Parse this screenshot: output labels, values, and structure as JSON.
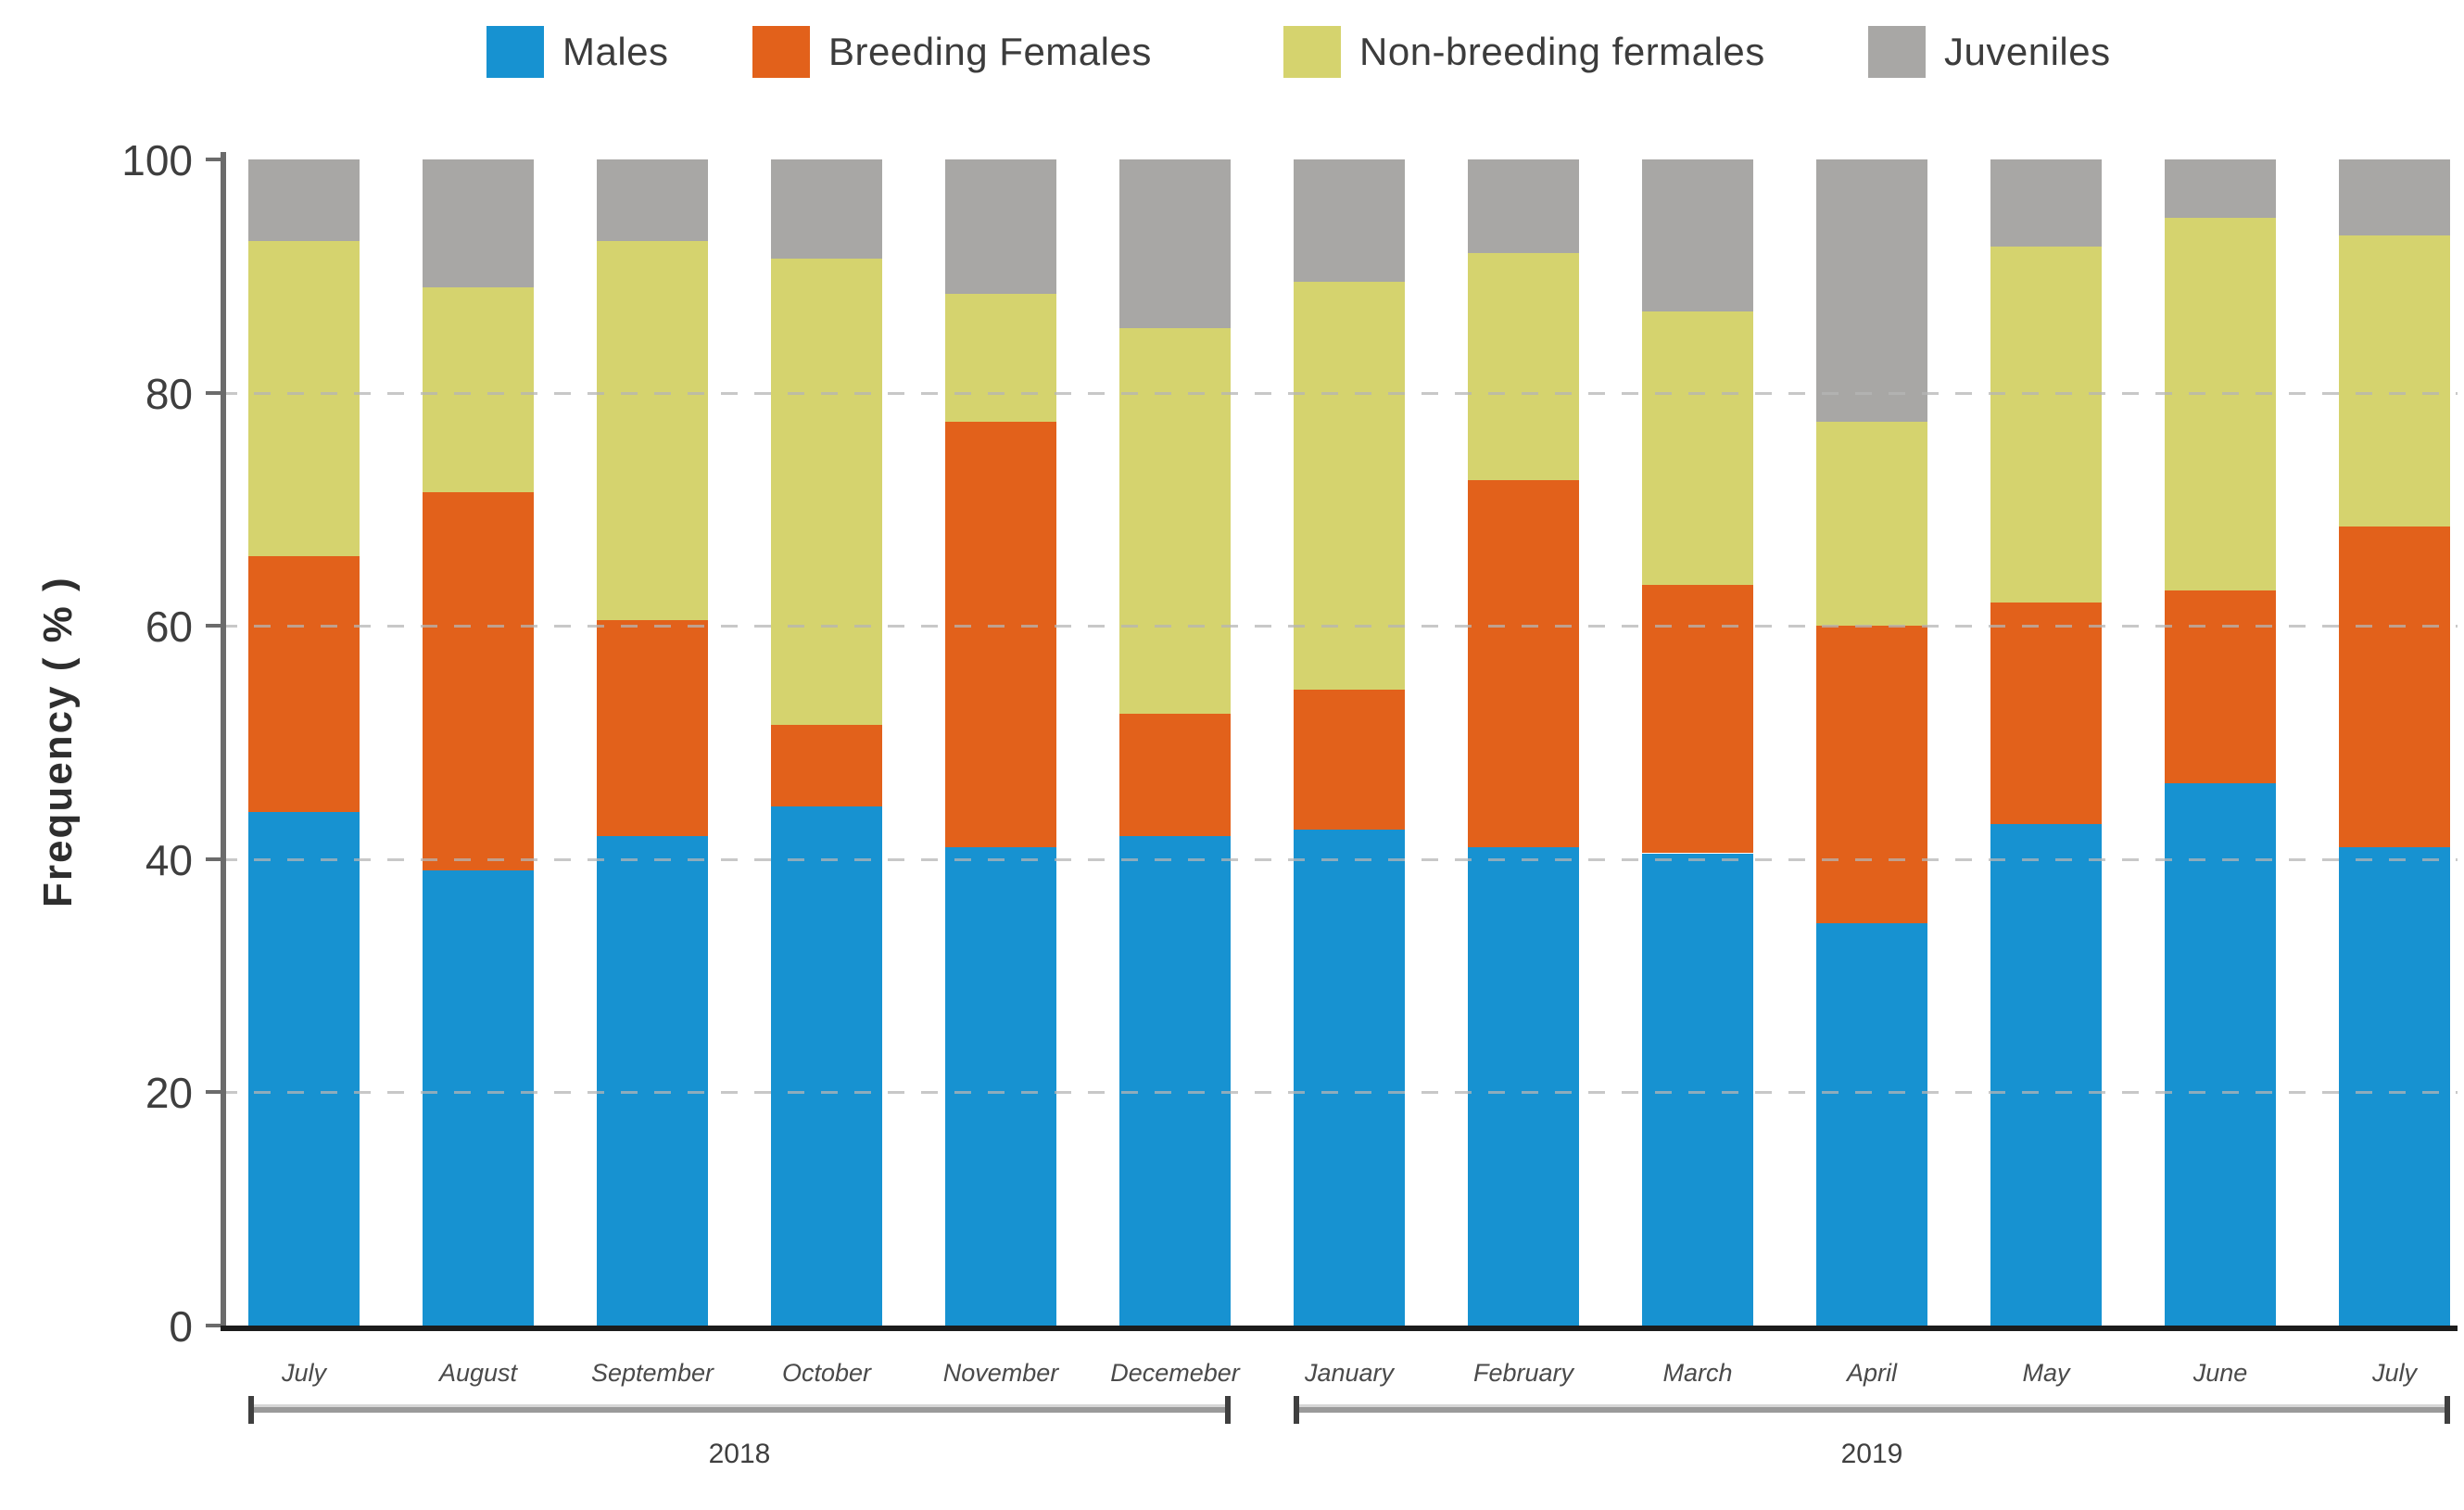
{
  "chart_data": {
    "type": "bar",
    "stacked": true,
    "title": "",
    "xlabel": "",
    "ylabel": "Frequency ( % )",
    "ylim": [
      0,
      100
    ],
    "yticks": [
      0,
      20,
      40,
      60,
      80,
      100
    ],
    "gridlines": [
      20,
      40,
      60,
      80
    ],
    "grid": "dashed horizontal",
    "legend_position": "top",
    "categories": [
      "July",
      "August",
      "September",
      "October",
      "November",
      "Decemeber",
      "January",
      "February",
      "March",
      "April",
      "May",
      "June",
      "July"
    ],
    "year_groups": [
      {
        "label": "2018",
        "from_index": 0,
        "to_index": 5
      },
      {
        "label": "2019",
        "from_index": 6,
        "to_index": 12
      }
    ],
    "series": [
      {
        "name": "Males",
        "color": "#1792d1",
        "values": [
          44,
          39,
          42,
          44.5,
          41,
          42,
          42.5,
          41,
          40.5,
          34.5,
          43,
          46.5,
          41
        ]
      },
      {
        "name": "Breeding Females",
        "color": "#e2611b",
        "values": [
          22,
          32.5,
          18.5,
          7,
          36.5,
          10.5,
          12,
          31.5,
          23,
          25.5,
          19,
          16.5,
          27.5
        ]
      },
      {
        "name": "Non-breeding fermales",
        "color": "#d5d36e",
        "values": [
          27,
          17.5,
          32.5,
          40,
          11,
          33,
          35,
          19.5,
          23.5,
          17.5,
          30.5,
          32,
          25
        ]
      },
      {
        "name": "Juveniles",
        "color": "#a8a7a5",
        "values": [
          7,
          11,
          7,
          8.5,
          11.5,
          14.5,
          10.5,
          8,
          13,
          22.5,
          7.5,
          5,
          6.5
        ]
      }
    ]
  }
}
